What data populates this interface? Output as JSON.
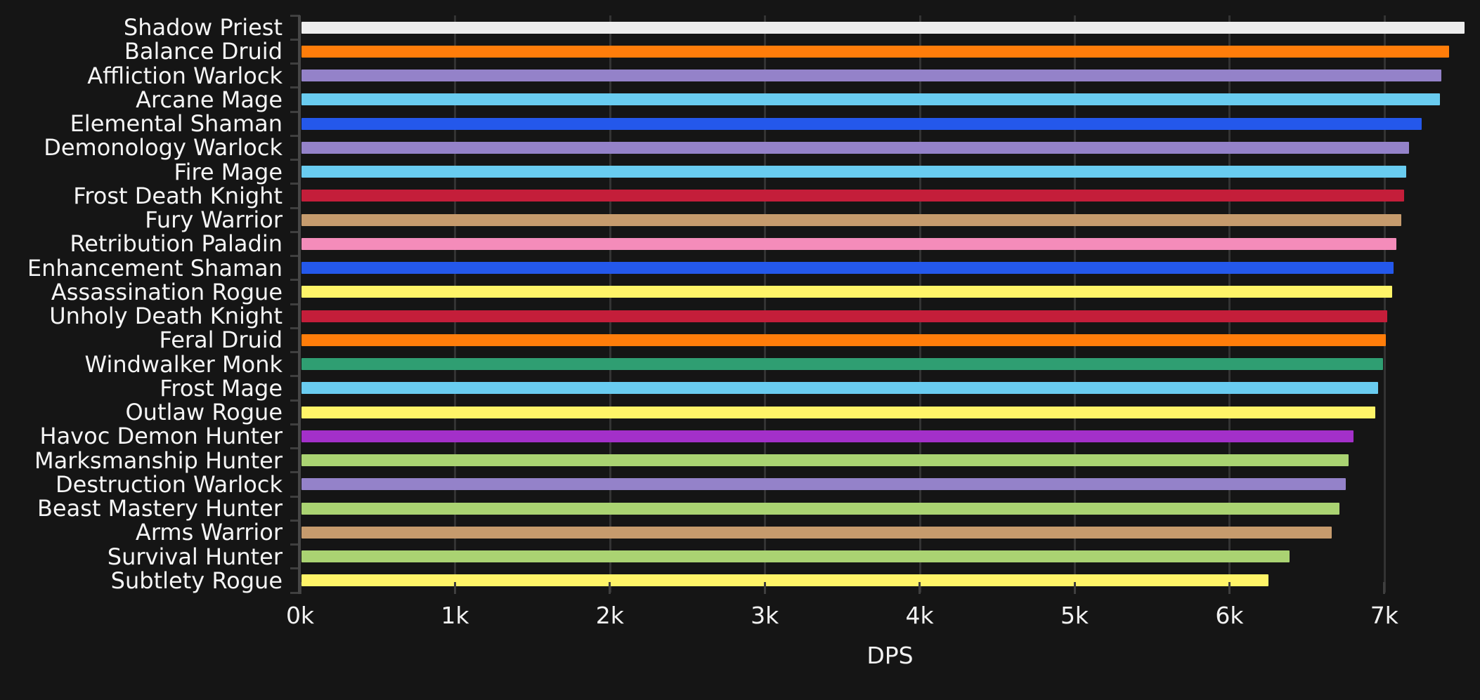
{
  "chart_data": {
    "type": "bar",
    "orientation": "horizontal",
    "title": "",
    "xlabel": "DPS",
    "ylabel": "",
    "legend": "none",
    "grid": "vertical-gridlines-behind-bars",
    "xlim": [
      0,
      7620
    ],
    "x_ticks": [
      "0k",
      "1k",
      "2k",
      "3k",
      "4k",
      "5k",
      "6k",
      "7k"
    ],
    "x_tick_values": [
      0,
      1000,
      2000,
      3000,
      4000,
      5000,
      6000,
      7000
    ],
    "categories": [
      "Shadow Priest",
      "Balance Druid",
      "Affliction Warlock",
      "Arcane Mage",
      "Elemental Shaman",
      "Demonology Warlock",
      "Fire Mage",
      "Frost Death Knight",
      "Fury Warrior",
      "Retribution Paladin",
      "Enhancement Shaman",
      "Assassination Rogue",
      "Unholy Death Knight",
      "Feral Druid",
      "Windwalker Monk",
      "Frost Mage",
      "Outlaw Rogue",
      "Havoc Demon Hunter",
      "Marksmanship Hunter",
      "Destruction Warlock",
      "Beast Mastery Hunter",
      "Arms Warrior",
      "Survival Hunter",
      "Subtlety Rogue"
    ],
    "values": [
      7520,
      7420,
      7370,
      7360,
      7240,
      7160,
      7140,
      7130,
      7110,
      7080,
      7060,
      7050,
      7020,
      7010,
      6990,
      6960,
      6940,
      6800,
      6770,
      6750,
      6710,
      6660,
      6390,
      6250
    ],
    "bar_colors": [
      "#ededed",
      "#ff7d0a",
      "#9482c9",
      "#69ccf0",
      "#2458eb",
      "#9482c9",
      "#69ccf0",
      "#c41e3a",
      "#c69b6d",
      "#f48cba",
      "#2458eb",
      "#fff468",
      "#c41e3a",
      "#ff7d0a",
      "#2f9e72",
      "#69ccf0",
      "#fff468",
      "#a330c9",
      "#aad372",
      "#9482c9",
      "#aad372",
      "#c69b6d",
      "#aad372",
      "#fff468"
    ],
    "colors": {
      "background": "#151515",
      "text": "#f2f2f2",
      "gridline": "#333333",
      "axis_line": "#464646",
      "tick": "#3f3f3f"
    }
  }
}
